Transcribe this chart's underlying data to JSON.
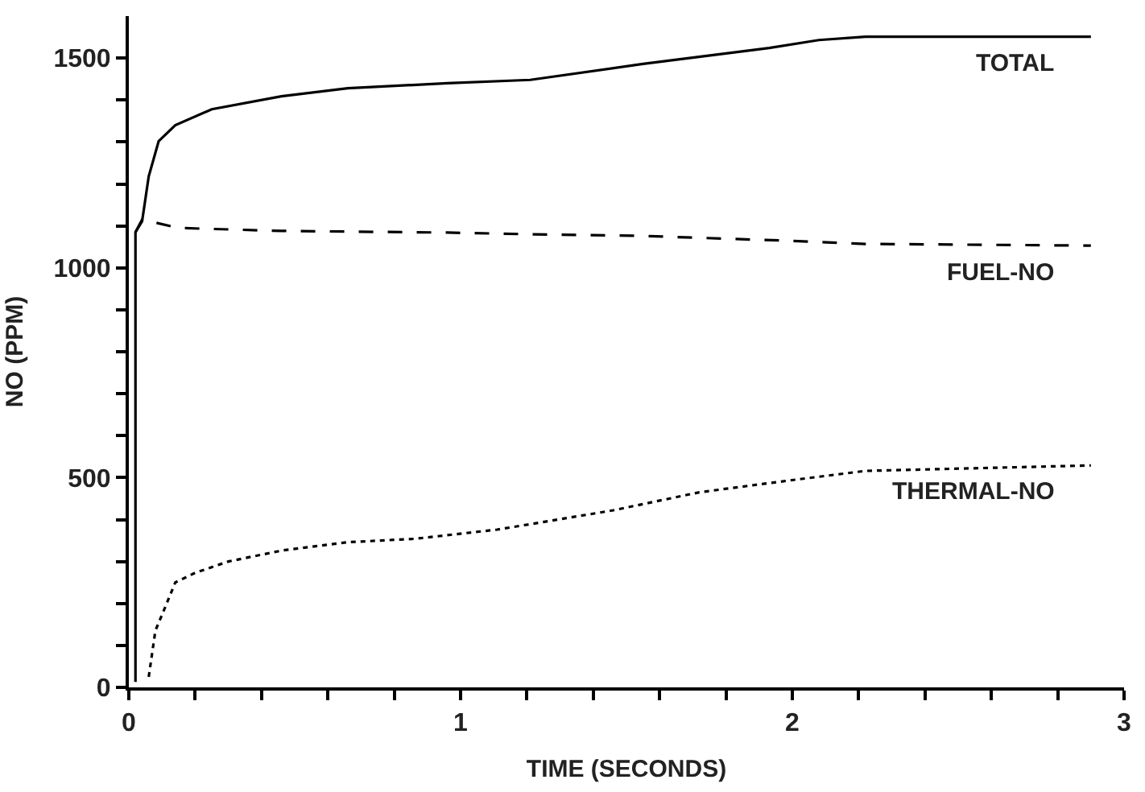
{
  "chart_data": {
    "type": "line",
    "xlabel": "TIME (SECONDS)",
    "ylabel": "NO (PPM)",
    "xlim": [
      0,
      3
    ],
    "ylim": [
      0,
      1600
    ],
    "xticks": [
      0,
      {
        "value": 0.2,
        "label": null
      },
      {
        "value": 0.4,
        "label": null
      },
      {
        "value": 0.6,
        "label": null
      },
      {
        "value": 0.8,
        "label": null
      },
      1,
      {
        "value": 1.2,
        "label": null
      },
      {
        "value": 1.4,
        "label": null
      },
      {
        "value": 1.6,
        "label": null
      },
      {
        "value": 1.8,
        "label": null
      },
      2,
      {
        "value": 2.2,
        "label": null
      },
      {
        "value": 2.4,
        "label": null
      },
      {
        "value": 2.6,
        "label": null
      },
      {
        "value": 2.8,
        "label": null
      },
      3
    ],
    "yticks": [
      0,
      {
        "value": 100,
        "label": null
      },
      {
        "value": 200,
        "label": null
      },
      {
        "value": 300,
        "label": null
      },
      {
        "value": 400,
        "label": null
      },
      500,
      {
        "value": 600,
        "label": null
      },
      {
        "value": 700,
        "label": null
      },
      {
        "value": 800,
        "label": null
      },
      {
        "value": 900,
        "label": null
      },
      1000,
      {
        "value": 1100,
        "label": null
      },
      {
        "value": 1200,
        "label": null
      },
      {
        "value": 1300,
        "label": null
      },
      {
        "value": 1400,
        "label": null
      },
      1500
    ],
    "legend": false,
    "marker": "none",
    "series": [
      {
        "name": "TOTAL",
        "color": "#000000",
        "line_style": "solid",
        "x": [
          0.02,
          0.02,
          0.04,
          0.06,
          0.09,
          0.14,
          0.25,
          0.46,
          0.66,
          0.96,
          1.21,
          1.55,
          1.93,
          2.08,
          2.22,
          2.9
        ],
        "values": [
          13,
          1085,
          1111,
          1218,
          1302,
          1340,
          1378,
          1409,
          1428,
          1440,
          1448,
          1486,
          1524,
          1543,
          1551,
          1551
        ]
      },
      {
        "name": "FUEL-NO",
        "color": "#000000",
        "line_style": "dashed",
        "x": [
          0.02,
          0.04,
          0.15,
          0.46,
          0.96,
          1.21,
          1.55,
          1.97,
          2.22,
          2.9
        ],
        "values": [
          1085,
          1115,
          1095,
          1088,
          1084,
          1080,
          1076,
          1065,
          1057,
          1053
        ]
      },
      {
        "name": "THERMAL-NO",
        "color": "#000000",
        "line_style": "dotted",
        "x": [
          0.06,
          0.08,
          0.11,
          0.14,
          0.2,
          0.3,
          0.46,
          0.66,
          0.86,
          1.11,
          1.21,
          1.46,
          1.72,
          1.97,
          2.22,
          2.9
        ],
        "values": [
          25,
          135,
          192,
          250,
          273,
          300,
          326,
          346,
          354,
          376,
          389,
          422,
          465,
          491,
          516,
          529
        ]
      }
    ]
  }
}
